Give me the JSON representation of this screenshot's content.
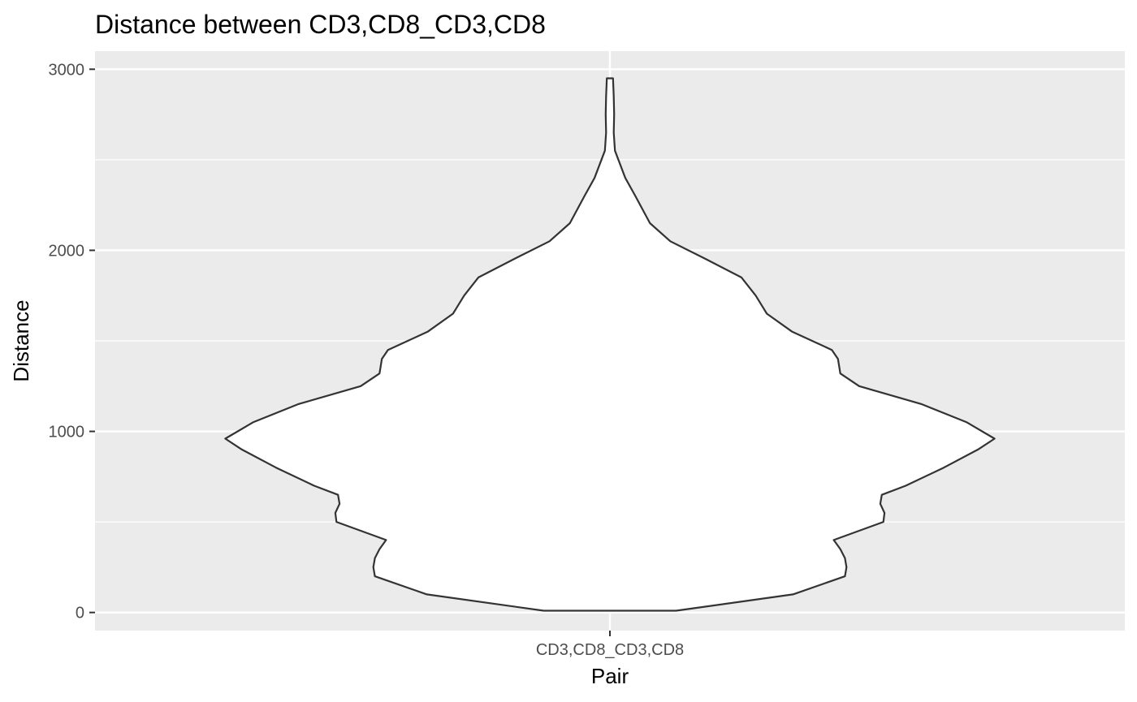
{
  "chart_data": {
    "type": "violin",
    "title": "Distance between CD3,CD8_CD3,CD8",
    "xlabel": "Pair",
    "ylabel": "Distance",
    "categories": [
      "CD3,CD8_CD3,CD8"
    ],
    "ylim": [
      -100,
      3100
    ],
    "y_ticks": [
      0,
      1000,
      2000,
      3000
    ],
    "y_tick_labels": [
      "0",
      "1000",
      "2000",
      "3000"
    ],
    "grid": true,
    "legend": "none",
    "colors": {
      "panel_background": "#ebebeb",
      "grid": "#ffffff",
      "violin_fill": "#ffffff",
      "violin_outline": "#333333"
    },
    "series": [
      {
        "category": "CD3,CD8_CD3,CD8",
        "density_profile": {
          "y": [
            10,
            100,
            200,
            250,
            300,
            350,
            400,
            500,
            550,
            600,
            650,
            700,
            800,
            900,
            960,
            1050,
            1150,
            1250,
            1320,
            1400,
            1450,
            1550,
            1650,
            1750,
            1850,
            1950,
            2050,
            2150,
            2300,
            2400,
            2550,
            2650,
            2750,
            2850,
            2950
          ],
          "relative_width": [
            0.172,
            0.476,
            0.611,
            0.615,
            0.611,
            0.599,
            0.582,
            0.711,
            0.714,
            0.703,
            0.707,
            0.769,
            0.868,
            0.957,
            1.0,
            0.928,
            0.811,
            0.648,
            0.599,
            0.593,
            0.577,
            0.474,
            0.408,
            0.379,
            0.342,
            0.251,
            0.157,
            0.104,
            0.066,
            0.04,
            0.013,
            0.01,
            0.011,
            0.01,
            0.008
          ]
        }
      }
    ]
  }
}
